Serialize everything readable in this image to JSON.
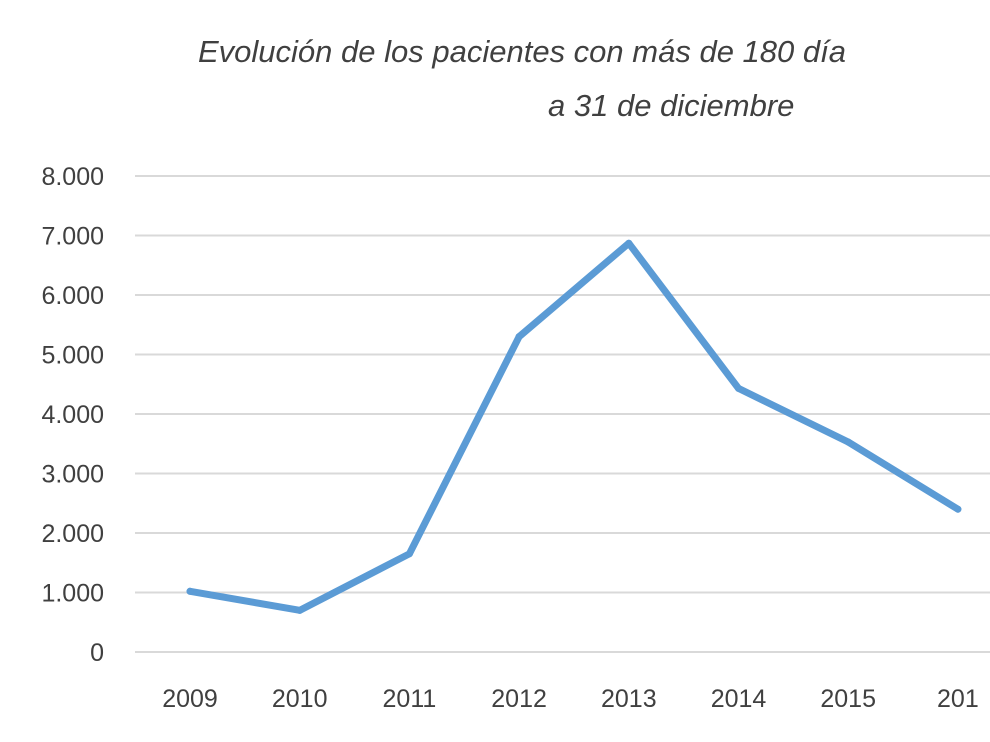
{
  "chart_data": {
    "type": "line",
    "title_lines": [
      "Evolución de los pacientes con más de 180 día",
      "a 31 de diciembre"
    ],
    "xlabel": "",
    "ylabel": "",
    "categories": [
      "2009",
      "2010",
      "2011",
      "2012",
      "2013",
      "2014",
      "2015",
      "201"
    ],
    "y_tick_labels": [
      "0",
      "1.000",
      "2.000",
      "3.000",
      "4.000",
      "5.000",
      "6.000",
      "7.000",
      "8.000"
    ],
    "ylim": [
      0,
      8000
    ],
    "grid": true,
    "legend": "none",
    "series": [
      {
        "values": [
          1020,
          700,
          1650,
          5300,
          6870,
          4430,
          3530,
          2400
        ],
        "color": "#5B9BD5"
      }
    ],
    "gridline_color": "#D9D9D9",
    "text_color": "#404040"
  }
}
